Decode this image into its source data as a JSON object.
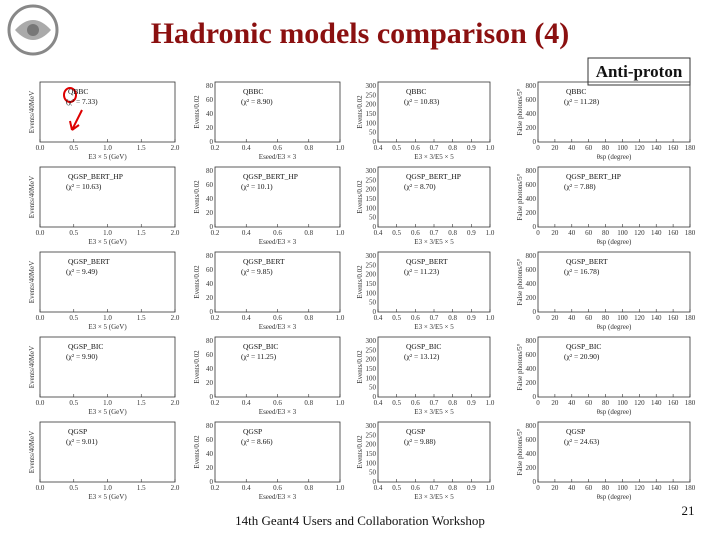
{
  "header": {
    "title": "Hadronic models comparison (4)",
    "tag": "Anti-proton"
  },
  "columns": [
    {
      "y_label": "Events/40MeV",
      "x_label": "E3 × 5 (GeV)",
      "x_ticks": [
        "0.0",
        "0.5",
        "1.0",
        "1.5",
        "2.0"
      ],
      "y_ticks": []
    },
    {
      "y_label": "Events/0.02",
      "x_label": "Eseed/E3 × 3",
      "x_ticks": [
        "0.2",
        "0.4",
        "0.6",
        "0.8",
        "1.0"
      ],
      "y_ticks": [
        "0",
        "20",
        "40",
        "60",
        "80"
      ]
    },
    {
      "y_label": "Events/0.02",
      "x_label": "E3 × 3/E5 × 5",
      "x_ticks": [
        "0.4",
        "0.5",
        "0.6",
        "0.7",
        "0.8",
        "0.9",
        "1.0"
      ],
      "y_ticks": [
        "0",
        "50",
        "100",
        "150",
        "200",
        "250",
        "300"
      ]
    },
    {
      "y_label": "False photons/5°",
      "x_label": "θsp (degree)",
      "x_ticks": [
        "0",
        "20",
        "40",
        "60",
        "80",
        "100",
        "120",
        "140",
        "160",
        "180"
      ],
      "y_ticks": [
        "0",
        "200",
        "400",
        "600",
        "800"
      ]
    }
  ],
  "rows": [
    {
      "model": "QBBC",
      "chi2": [
        "(χ² = 7.33)",
        "(χ² = 8.90)",
        "(χ² = 10.83)",
        "(χ² = 11.28)"
      ]
    },
    {
      "model": "QGSP_BERT_HP",
      "chi2": [
        "(χ² = 10.63)",
        "(χ² = 10.1)",
        "(χ² = 8.70)",
        "(χ² = 7.88)"
      ]
    },
    {
      "model": "QGSP_BERT",
      "chi2": [
        "(χ² = 9.49)",
        "(χ² = 9.85)",
        "(χ² = 11.23)",
        "(χ² = 16.78)"
      ]
    },
    {
      "model": "QGSP_BIC",
      "chi2": [
        "(χ² = 9.90)",
        "(χ² = 11.25)",
        "(χ² = 13.12)",
        "(χ² = 20.90)"
      ]
    },
    {
      "model": "QGSP",
      "chi2": [
        "(χ² = 9.01)",
        "(χ² = 8.66)",
        "(χ² = 9.88)",
        "(χ² = 24.63)"
      ]
    }
  ],
  "footer": {
    "event": "14th Geant4 Users and Collaboration Workshop",
    "page": "21"
  }
}
